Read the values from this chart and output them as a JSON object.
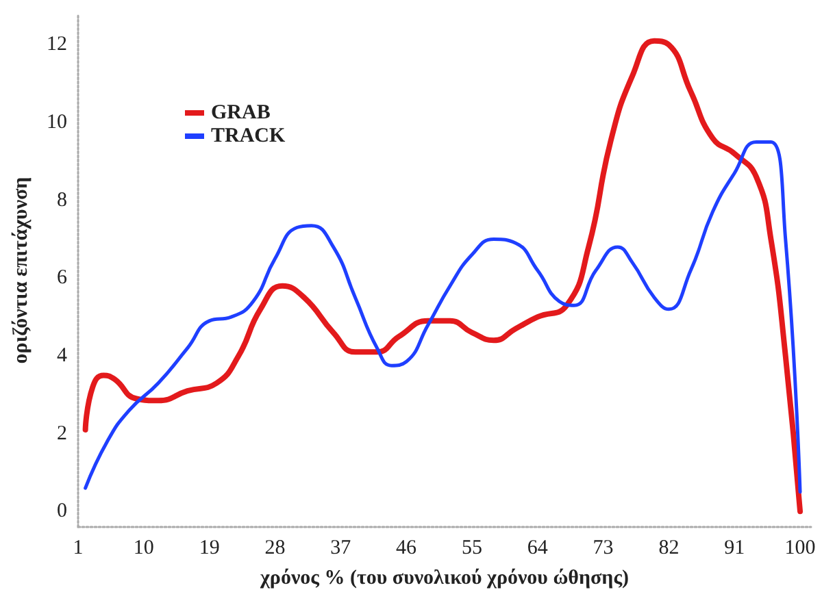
{
  "chart_data": {
    "type": "line",
    "xlabel": "χρόνος % (του συνολικού χρόνου ώθησης)",
    "ylabel": "οριζόντια επιτάχυνση",
    "xlim": [
      1,
      101.5
    ],
    "xticks": [
      1,
      10,
      19,
      28,
      37,
      46,
      55,
      64,
      73,
      82,
      91,
      100
    ],
    "ylim": [
      -0.4,
      12.8
    ],
    "yticks": [
      0,
      2,
      4,
      6,
      8,
      10,
      12
    ],
    "legend": "top left",
    "marker": "none",
    "line_style": "solid",
    "series": [
      {
        "name": "GRAB",
        "color": "#e31a1c",
        "x": [
          2,
          3,
          4.5,
          6,
          9,
          12,
          16,
          20,
          23,
          26,
          29,
          32,
          36,
          39,
          42,
          45,
          49,
          52,
          55,
          58,
          61,
          64,
          68,
          71,
          74,
          77,
          80,
          82,
          85,
          88,
          91,
          94,
          96,
          98,
          100
        ],
        "values": [
          2.1,
          3.2,
          3.5,
          3.4,
          2.9,
          2.85,
          3.1,
          3.3,
          4.0,
          5.2,
          5.8,
          5.5,
          4.6,
          4.1,
          4.1,
          4.5,
          4.9,
          4.9,
          4.6,
          4.4,
          4.7,
          5.0,
          5.3,
          6.8,
          9.5,
          11.2,
          12.1,
          12.0,
          10.8,
          9.6,
          9.2,
          8.6,
          7.0,
          4.0,
          0
        ]
      },
      {
        "name": "TRACK",
        "color": "#1f3fff",
        "x": [
          2,
          5,
          8,
          12,
          16,
          19,
          22,
          25,
          28,
          31,
          33,
          36,
          39,
          42,
          44,
          46,
          49,
          52,
          55,
          58,
          61,
          64,
          67,
          69,
          72,
          75,
          77,
          80,
          82,
          85,
          88,
          91,
          94,
          96,
          98,
          100
        ],
        "values": [
          0.6,
          1.8,
          2.6,
          3.3,
          4.2,
          4.9,
          5.0,
          5.4,
          6.5,
          7.3,
          7.35,
          6.8,
          5.5,
          4.2,
          3.75,
          3.85,
          4.8,
          5.8,
          6.6,
          7.0,
          6.9,
          6.2,
          5.4,
          5.3,
          6.2,
          6.8,
          6.4,
          5.5,
          5.2,
          6.2,
          7.7,
          8.7,
          9.5,
          9.5,
          7.0,
          0.5
        ]
      }
    ]
  }
}
